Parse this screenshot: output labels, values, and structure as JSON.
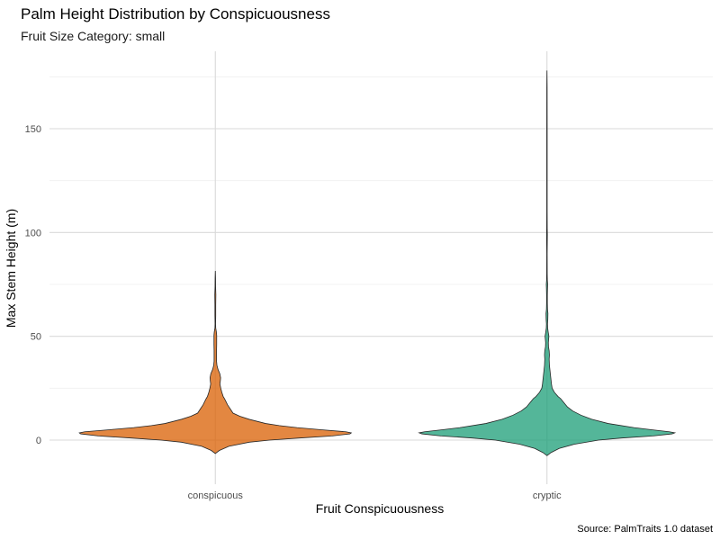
{
  "chart_data": {
    "type": "violin",
    "title": "Palm Height Distribution by Conspicuousness",
    "subtitle": "Fruit Size Category: small",
    "xlabel": "Fruit Conspicuousness",
    "ylabel": "Max Stem Height (m)",
    "caption": "Source: PalmTraits 1.0 dataset",
    "categories": [
      "conspicuous",
      "cryptic"
    ],
    "ylim": [
      -22,
      188
    ],
    "yticks": [
      0,
      50,
      100,
      150
    ],
    "grid": true,
    "legend": "none",
    "series": [
      {
        "category": "conspicuous",
        "color": "#D95F02",
        "min": -6.5,
        "max": 81.5,
        "density_profile": [
          [
            -6.5,
            0.0
          ],
          [
            -5,
            0.03
          ],
          [
            -3,
            0.1
          ],
          [
            -1,
            0.25
          ],
          [
            0,
            0.4
          ],
          [
            1,
            0.62
          ],
          [
            2,
            0.86
          ],
          [
            3,
            0.99
          ],
          [
            3.5,
            1.0
          ],
          [
            4,
            0.96
          ],
          [
            5,
            0.78
          ],
          [
            6,
            0.6
          ],
          [
            7,
            0.47
          ],
          [
            8,
            0.37
          ],
          [
            10,
            0.25
          ],
          [
            11.5,
            0.18
          ],
          [
            13,
            0.13
          ],
          [
            15,
            0.11
          ],
          [
            17,
            0.09
          ],
          [
            19,
            0.075
          ],
          [
            20,
            0.067
          ],
          [
            21,
            0.058
          ],
          [
            23,
            0.048
          ],
          [
            25,
            0.04
          ],
          [
            27,
            0.034
          ],
          [
            28.5,
            0.037
          ],
          [
            30,
            0.039
          ],
          [
            32,
            0.033
          ],
          [
            34,
            0.02
          ],
          [
            36,
            0.012
          ],
          [
            38,
            0.009
          ],
          [
            40,
            0.009
          ],
          [
            43,
            0.009
          ],
          [
            46,
            0.01
          ],
          [
            49,
            0.01
          ],
          [
            50.5,
            0.01
          ],
          [
            52,
            0.008
          ],
          [
            54,
            0.003
          ],
          [
            56,
            0.002
          ],
          [
            60,
            0.003
          ],
          [
            65,
            0.003
          ],
          [
            70,
            0.004
          ],
          [
            74,
            0.002
          ],
          [
            78,
            0.0015
          ],
          [
            81.5,
            0.0
          ]
        ]
      },
      {
        "category": "cryptic",
        "color": "#1B9E77",
        "min": -7.5,
        "max": 178,
        "density_profile": [
          [
            -7.5,
            0.0
          ],
          [
            -6,
            0.03
          ],
          [
            -4,
            0.09
          ],
          [
            -2,
            0.2
          ],
          [
            0,
            0.38
          ],
          [
            1,
            0.55
          ],
          [
            2,
            0.78
          ],
          [
            3,
            0.92
          ],
          [
            3.5,
            0.94
          ],
          [
            4,
            0.9
          ],
          [
            5,
            0.77
          ],
          [
            6,
            0.64
          ],
          [
            8,
            0.45
          ],
          [
            10,
            0.33
          ],
          [
            12,
            0.25
          ],
          [
            14,
            0.19
          ],
          [
            16,
            0.15
          ],
          [
            18,
            0.125
          ],
          [
            20,
            0.1
          ],
          [
            21,
            0.081
          ],
          [
            23,
            0.055
          ],
          [
            25,
            0.038
          ],
          [
            27,
            0.033
          ],
          [
            30,
            0.028
          ],
          [
            33,
            0.023
          ],
          [
            36,
            0.018
          ],
          [
            39,
            0.016
          ],
          [
            41,
            0.018
          ],
          [
            43,
            0.016
          ],
          [
            45,
            0.011
          ],
          [
            47,
            0.01
          ],
          [
            50,
            0.014
          ],
          [
            52,
            0.009
          ],
          [
            54,
            0.005
          ],
          [
            56,
            0.004
          ],
          [
            58,
            0.006
          ],
          [
            61,
            0.007
          ],
          [
            63,
            0.004
          ],
          [
            66,
            0.003
          ],
          [
            70,
            0.003
          ],
          [
            73,
            0.004
          ],
          [
            75,
            0.005
          ],
          [
            77,
            0.003
          ],
          [
            80,
            0.002
          ],
          [
            90,
            0.0015
          ],
          [
            99,
            0.003
          ],
          [
            102,
            0.002
          ],
          [
            110,
            0.0015
          ],
          [
            130,
            0.0015
          ],
          [
            150,
            0.0015
          ],
          [
            170,
            0.0012
          ],
          [
            178,
            0.0
          ]
        ]
      }
    ]
  }
}
